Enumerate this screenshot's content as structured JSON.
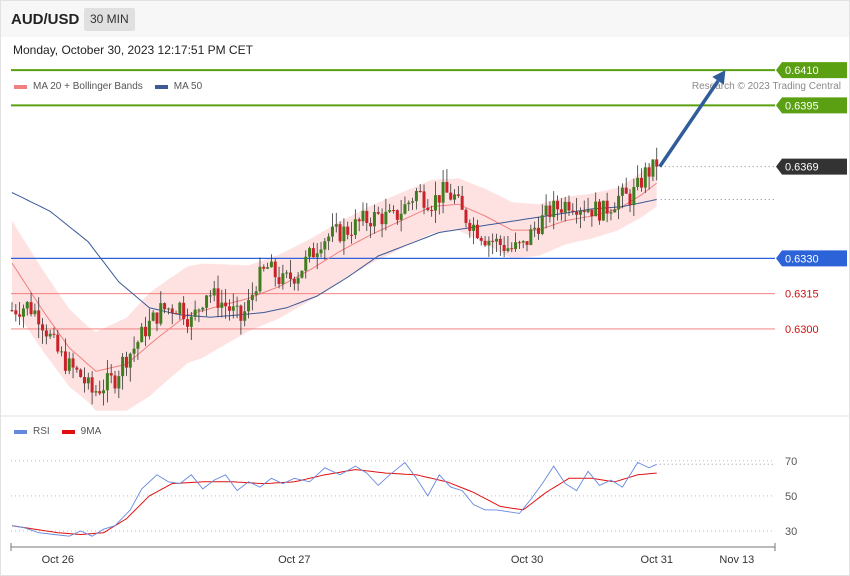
{
  "header": {
    "symbol": "AUD/USD",
    "timeframe": "30 MIN"
  },
  "date_text": "Monday, October 30, 2023 12:17:51 PM CET",
  "credit": "Research © 2023 Trading Central",
  "colors": {
    "up": "#3f7d1f",
    "down": "#c8232a",
    "ma20": "#f08080",
    "ma50": "#3c5a96",
    "band_fill": "#fdd8d8",
    "resistance": "#5aa012",
    "pivot": "#2c63d8",
    "support": "#f07070",
    "rsi": "#6688dd",
    "rsi_ma": "#e01010",
    "arrow": "#2f5d9a",
    "price_tag": "#333333"
  },
  "chart_data": [
    {
      "type": "candlestick",
      "legend": [
        {
          "label": "MA 20 + Bollinger Bands",
          "color": "#f08080"
        },
        {
          "label": "MA 50",
          "color": "#3c5a96"
        }
      ],
      "ylim": [
        0.6263,
        0.64245
      ],
      "x_range": [
        0,
        200
      ],
      "x_ticks": [
        {
          "label": "Oct 26",
          "x": 12
        },
        {
          "label": "Oct 27",
          "x": 74
        },
        {
          "label": "Oct 30",
          "x": 135
        },
        {
          "label": "Oct 31",
          "x": 169
        },
        {
          "label": "Nov 13",
          "x": 190
        }
      ],
      "levels": [
        {
          "value": 0.641,
          "label": "0.6410",
          "kind": "resistance"
        },
        {
          "value": 0.6395,
          "label": "0.6395",
          "kind": "resistance"
        },
        {
          "value": 0.6369,
          "label": "0.6369",
          "kind": "current"
        },
        {
          "value": 0.633,
          "label": "0.6330",
          "kind": "pivot"
        },
        {
          "value": 0.6315,
          "label": "0.6315",
          "kind": "support"
        },
        {
          "value": 0.63,
          "label": "0.6300",
          "kind": "support"
        }
      ],
      "forecast_arrow": {
        "from": {
          "x": 169,
          "y": 0.6369
        },
        "to": {
          "x": 187,
          "y": 0.641
        }
      },
      "price_anchors": [
        [
          0,
          0.6308
        ],
        [
          4,
          0.631
        ],
        [
          7,
          0.6306
        ],
        [
          12,
          0.629
        ],
        [
          15,
          0.6284
        ],
        [
          18,
          0.628
        ],
        [
          21,
          0.6273
        ],
        [
          24,
          0.6276
        ],
        [
          27,
          0.6279
        ],
        [
          29,
          0.6286
        ],
        [
          32,
          0.6292
        ],
        [
          35,
          0.63
        ],
        [
          39,
          0.6308
        ],
        [
          44,
          0.631
        ],
        [
          47,
          0.6303
        ],
        [
          51,
          0.6316
        ],
        [
          56,
          0.631
        ],
        [
          60,
          0.6304
        ],
        [
          62,
          0.631
        ],
        [
          64,
          0.632
        ],
        [
          67,
          0.6326
        ],
        [
          71,
          0.632
        ],
        [
          75,
          0.6324
        ],
        [
          79,
          0.6333
        ],
        [
          81,
          0.6338
        ],
        [
          84,
          0.634
        ],
        [
          88,
          0.6342
        ],
        [
          92,
          0.6346
        ],
        [
          96,
          0.6348
        ],
        [
          100,
          0.6347
        ],
        [
          103,
          0.6352
        ],
        [
          106,
          0.6358
        ],
        [
          110,
          0.6354
        ],
        [
          113,
          0.6358
        ],
        [
          116,
          0.6356
        ],
        [
          118,
          0.6349
        ],
        [
          121,
          0.6344
        ],
        [
          124,
          0.6339
        ],
        [
          128,
          0.6336
        ],
        [
          131,
          0.6334
        ],
        [
          134,
          0.6335
        ],
        [
          137,
          0.6343
        ],
        [
          141,
          0.635
        ],
        [
          146,
          0.6354
        ],
        [
          150,
          0.6352
        ],
        [
          155,
          0.635
        ],
        [
          159,
          0.6356
        ],
        [
          162,
          0.6356
        ],
        [
          164,
          0.636
        ],
        [
          166,
          0.6366
        ],
        [
          169,
          0.6369
        ]
      ],
      "ma20_anchors": [
        [
          0,
          0.6328
        ],
        [
          8,
          0.6308
        ],
        [
          15,
          0.6292
        ],
        [
          22,
          0.6282
        ],
        [
          30,
          0.6285
        ],
        [
          38,
          0.6296
        ],
        [
          46,
          0.6306
        ],
        [
          55,
          0.631
        ],
        [
          62,
          0.6313
        ],
        [
          70,
          0.6318
        ],
        [
          78,
          0.6325
        ],
        [
          86,
          0.6333
        ],
        [
          94,
          0.634
        ],
        [
          102,
          0.6346
        ],
        [
          110,
          0.6352
        ],
        [
          117,
          0.6353
        ],
        [
          124,
          0.6348
        ],
        [
          131,
          0.6342
        ],
        [
          138,
          0.6342
        ],
        [
          145,
          0.6346
        ],
        [
          152,
          0.6348
        ],
        [
          159,
          0.6351
        ],
        [
          165,
          0.6357
        ],
        [
          169,
          0.6362
        ]
      ],
      "ma50_anchors": [
        [
          0,
          0.6358
        ],
        [
          10,
          0.635
        ],
        [
          20,
          0.6337
        ],
        [
          28,
          0.632
        ],
        [
          36,
          0.6309
        ],
        [
          44,
          0.6306
        ],
        [
          52,
          0.6305
        ],
        [
          60,
          0.6306
        ],
        [
          66,
          0.6307
        ],
        [
          72,
          0.6309
        ],
        [
          80,
          0.6314
        ],
        [
          88,
          0.6322
        ],
        [
          96,
          0.6331
        ],
        [
          104,
          0.6336
        ],
        [
          112,
          0.6341
        ],
        [
          120,
          0.6343
        ],
        [
          128,
          0.6345
        ],
        [
          136,
          0.6347
        ],
        [
          144,
          0.6349
        ],
        [
          152,
          0.6351
        ],
        [
          160,
          0.6352
        ],
        [
          169,
          0.6355
        ]
      ],
      "band_width_anchors": [
        [
          0,
          0.0018
        ],
        [
          20,
          0.0016
        ],
        [
          36,
          0.0022
        ],
        [
          50,
          0.002
        ],
        [
          62,
          0.0014
        ],
        [
          80,
          0.0013
        ],
        [
          100,
          0.0012
        ],
        [
          116,
          0.0011
        ],
        [
          130,
          0.0012
        ],
        [
          146,
          0.001
        ],
        [
          160,
          0.0009
        ],
        [
          169,
          0.001
        ]
      ]
    },
    {
      "type": "line",
      "legend": [
        {
          "label": "RSI",
          "color": "#6688dd"
        },
        {
          "label": "9MA",
          "color": "#e01010"
        }
      ],
      "ylim": [
        22,
        79
      ],
      "y_ticks": [
        {
          "label": "70",
          "value": 70
        },
        {
          "label": "50",
          "value": 50
        },
        {
          "label": "30",
          "value": 30
        }
      ],
      "last_value": 68,
      "rsi_anchors": [
        [
          0,
          33
        ],
        [
          3,
          32
        ],
        [
          7,
          29
        ],
        [
          11,
          28
        ],
        [
          15,
          27
        ],
        [
          18,
          30
        ],
        [
          21,
          27
        ],
        [
          24,
          31
        ],
        [
          27,
          33
        ],
        [
          31,
          42
        ],
        [
          34,
          54
        ],
        [
          38,
          62
        ],
        [
          41,
          58
        ],
        [
          44,
          57
        ],
        [
          47,
          62
        ],
        [
          50,
          54
        ],
        [
          53,
          59
        ],
        [
          56,
          62
        ],
        [
          59,
          53
        ],
        [
          62,
          58
        ],
        [
          65,
          55
        ],
        [
          68,
          60
        ],
        [
          71,
          57
        ],
        [
          74,
          60
        ],
        [
          78,
          58
        ],
        [
          82,
          66
        ],
        [
          86,
          62
        ],
        [
          90,
          67
        ],
        [
          93,
          63
        ],
        [
          96,
          56
        ],
        [
          99,
          62
        ],
        [
          103,
          69
        ],
        [
          106,
          60
        ],
        [
          109,
          50
        ],
        [
          112,
          62
        ],
        [
          115,
          55
        ],
        [
          118,
          53
        ],
        [
          121,
          45
        ],
        [
          124,
          42
        ],
        [
          127,
          42
        ],
        [
          130,
          41
        ],
        [
          133,
          40
        ],
        [
          136,
          48
        ],
        [
          139,
          57
        ],
        [
          142,
          67
        ],
        [
          145,
          57
        ],
        [
          148,
          53
        ],
        [
          151,
          64
        ],
        [
          154,
          56
        ],
        [
          157,
          59
        ],
        [
          160,
          55
        ],
        [
          164,
          69
        ],
        [
          167,
          66
        ],
        [
          169,
          68
        ]
      ],
      "ma_anchors": [
        [
          0,
          33
        ],
        [
          6,
          31
        ],
        [
          12,
          29
        ],
        [
          18,
          28
        ],
        [
          24,
          29
        ],
        [
          30,
          37
        ],
        [
          36,
          50
        ],
        [
          42,
          57
        ],
        [
          50,
          58
        ],
        [
          58,
          58
        ],
        [
          66,
          57
        ],
        [
          74,
          58
        ],
        [
          82,
          62
        ],
        [
          90,
          65
        ],
        [
          98,
          63
        ],
        [
          106,
          62
        ],
        [
          114,
          58
        ],
        [
          121,
          52
        ],
        [
          128,
          44
        ],
        [
          134,
          42
        ],
        [
          140,
          52
        ],
        [
          146,
          60
        ],
        [
          152,
          60
        ],
        [
          158,
          58
        ],
        [
          164,
          62
        ],
        [
          169,
          63
        ]
      ]
    }
  ]
}
